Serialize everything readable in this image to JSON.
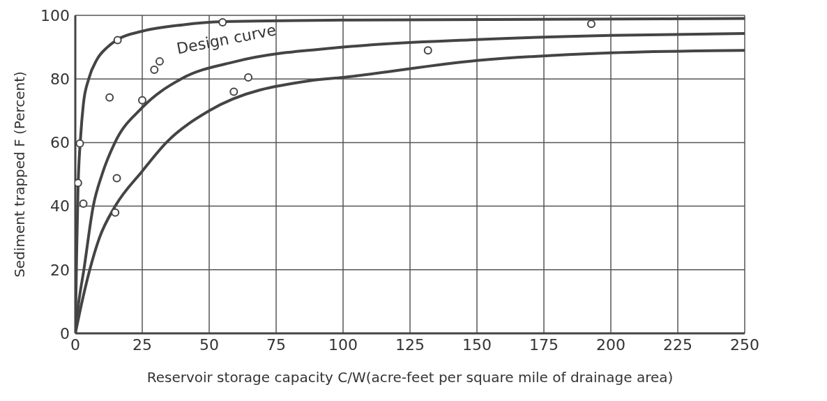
{
  "chart_data": {
    "type": "scatter",
    "xlabel": "Reservoir storage capacity C/W(acre-feet per square mile of drainage area)",
    "ylabel": "Sediment trapped F (Percent)",
    "xlim": [
      0,
      250
    ],
    "xticks": [
      0,
      25,
      50,
      75,
      100,
      125,
      150,
      175,
      200,
      225,
      250
    ],
    "ylim": [
      0,
      100
    ],
    "yticks": [
      0,
      20,
      40,
      60,
      80,
      100
    ],
    "grid": true,
    "marker": "circle",
    "annotations": [
      "Design curve"
    ],
    "series": [
      {
        "color": "#444444",
        "x": [
          15.8,
          55,
          29.5,
          31.5,
          12.8,
          25,
          1.7,
          1,
          3,
          15.5,
          14.9,
          59.2,
          64.6,
          131.7,
          192.7
        ],
        "values": [
          92.2,
          97.8,
          82.9,
          85.5,
          74.2,
          73.3,
          59.7,
          47.3,
          40.8,
          48.8,
          38,
          76,
          80.5,
          89,
          97.3
        ]
      },
      {
        "type": "line",
        "color": "#444444",
        "marker": "none",
        "x": [
          0,
          0.5,
          1,
          2,
          3,
          5,
          8,
          12,
          16,
          25,
          40,
          55,
          100,
          250
        ],
        "values": [
          0,
          25,
          45,
          62,
          72,
          80,
          86,
          90,
          92.5,
          95,
          97,
          98,
          98.5,
          99
        ]
      },
      {
        "type": "line",
        "color": "#444444",
        "marker": "none",
        "x": [
          0,
          1,
          3.2,
          6.7,
          10,
          14.8,
          25,
          39.5,
          60,
          100,
          150,
          200,
          250
        ],
        "values": [
          0,
          8,
          20,
          40,
          50,
          60,
          71,
          80,
          85.5,
          90,
          92.4,
          93.7,
          94.3
        ]
      },
      {
        "type": "line",
        "color": "#444444",
        "marker": "none",
        "x": [
          0,
          2,
          5.4,
          9,
          14.9,
          25,
          34,
          50,
          88,
          100,
          150,
          200,
          250
        ],
        "values": [
          0,
          8,
          20,
          30,
          40,
          51,
          60,
          70,
          79.5,
          80.5,
          85.8,
          88.2,
          89
        ]
      }
    ]
  }
}
